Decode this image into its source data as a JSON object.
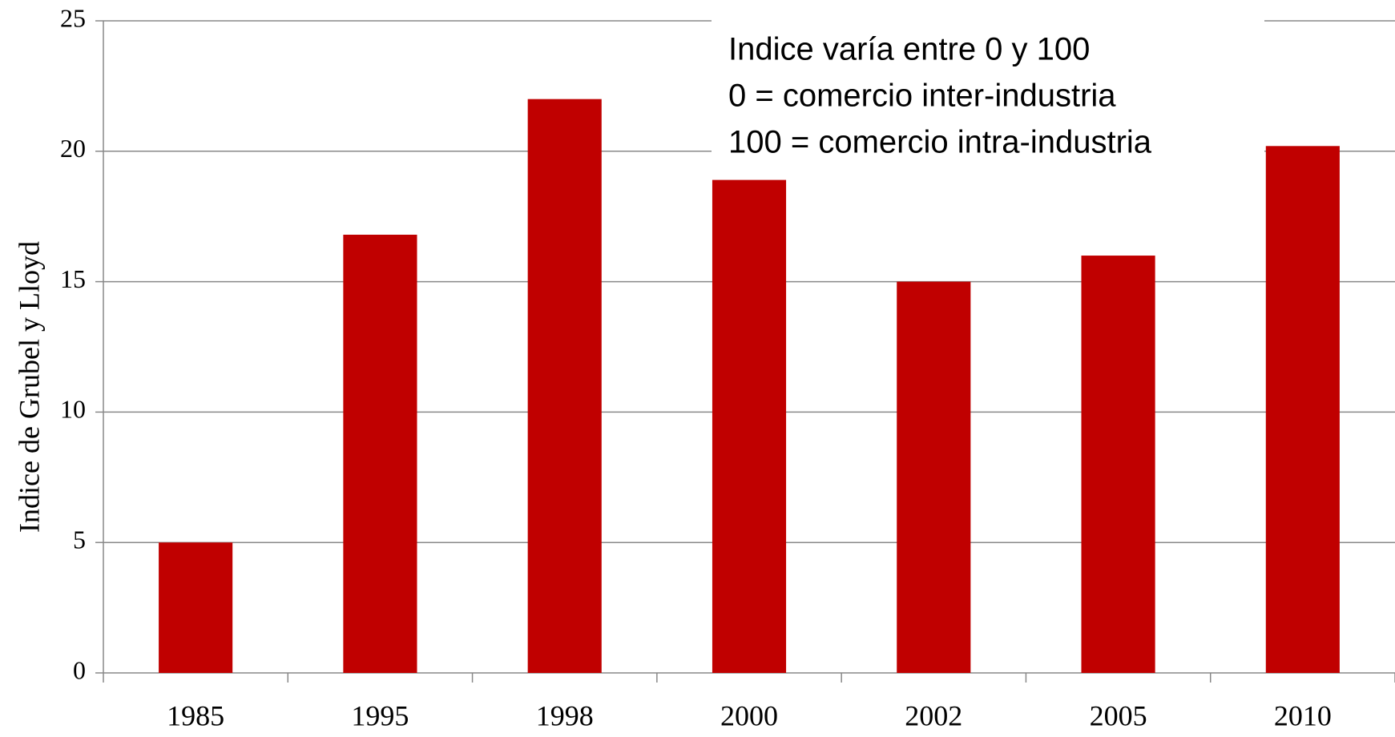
{
  "chart_data": {
    "type": "bar",
    "y_axis_label": "Indice de Grubel y Lloyd",
    "categories": [
      "1985",
      "1995",
      "1998",
      "2000",
      "2002",
      "2005",
      "2010"
    ],
    "values": [
      5,
      16.8,
      22,
      18.9,
      15,
      16,
      20.2
    ],
    "color": "#c00000",
    "ylim": [
      0,
      25
    ],
    "yticks": [
      0,
      5,
      10,
      15,
      20,
      25
    ],
    "grid": true,
    "annotations": [
      "Indice varía entre 0 y 100",
      "0 = comercio inter-industria",
      "100 = comercio intra-industria"
    ]
  }
}
